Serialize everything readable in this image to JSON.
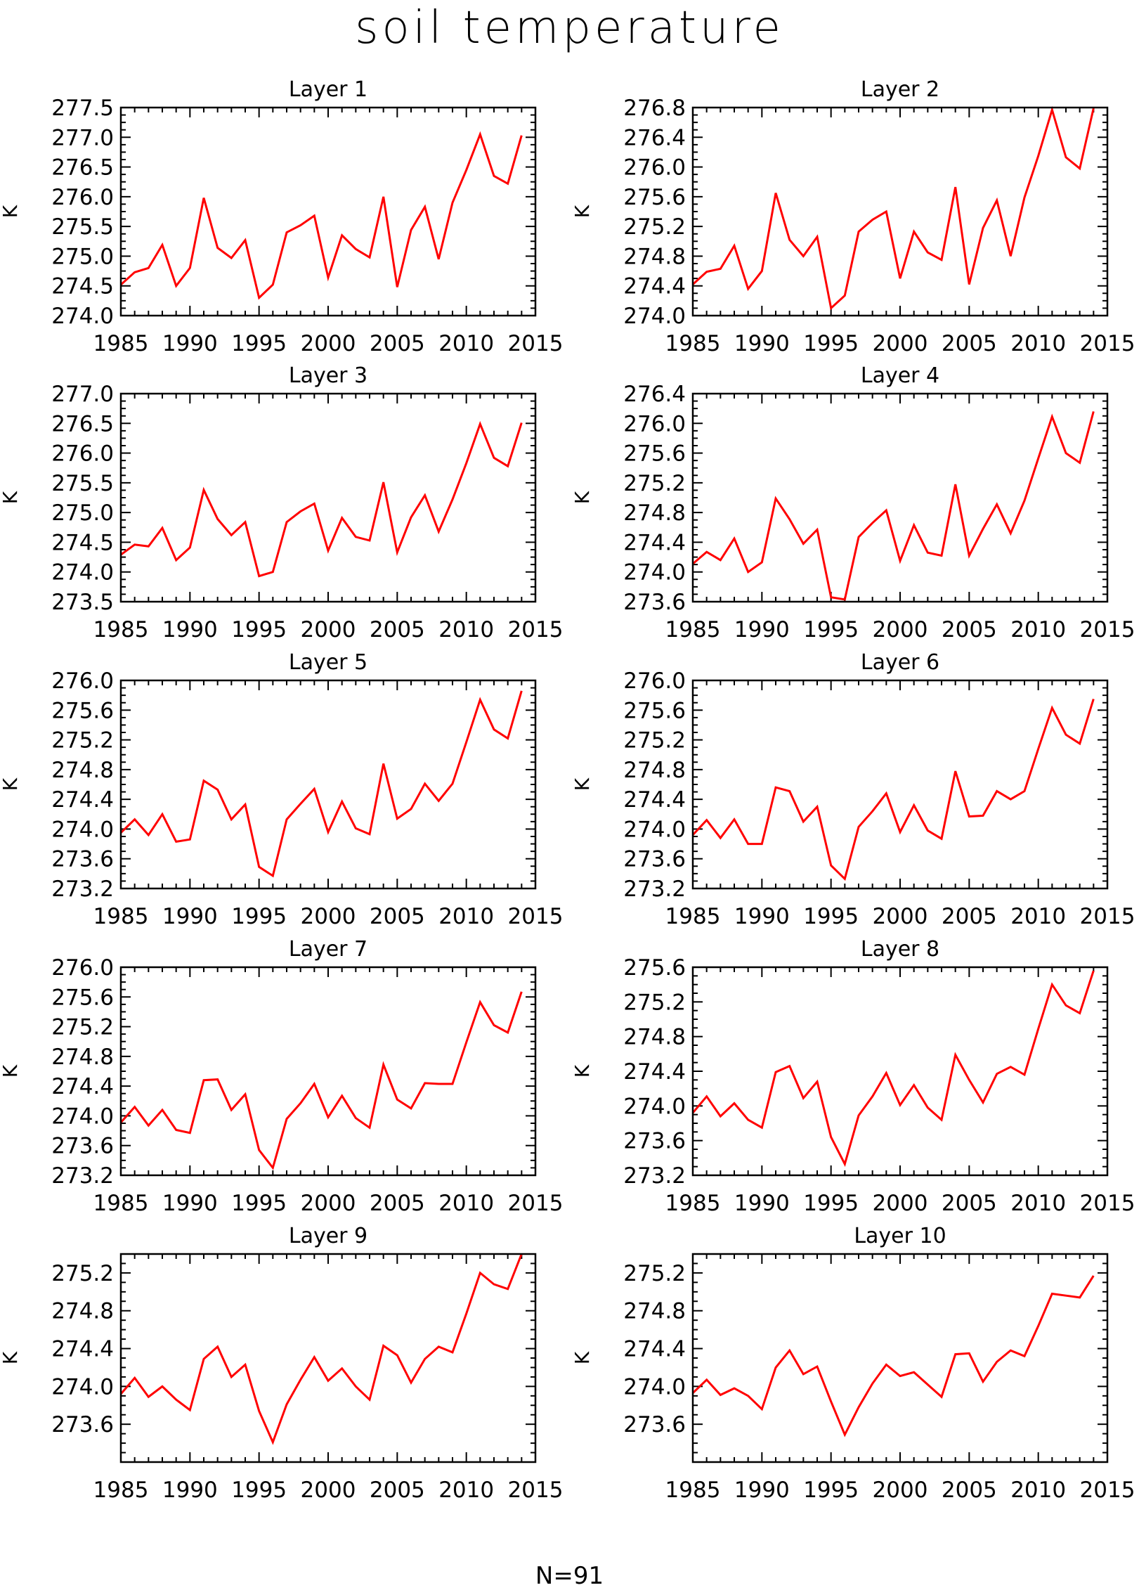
{
  "title": "soil temperature",
  "footer": "N=91",
  "series_color": "#ff0000",
  "chart_data": [
    {
      "type": "line",
      "title": "Layer 1",
      "ylabel": "K",
      "xlim": [
        1985,
        2015
      ],
      "xticks": [
        1985,
        1990,
        1995,
        2000,
        2005,
        2010,
        2015
      ],
      "ylim": [
        274.0,
        277.5
      ],
      "yticks": [
        "274.0",
        "274.5",
        "275.0",
        "275.5",
        "276.0",
        "276.5",
        "277.0",
        "277.5"
      ],
      "x": [
        1985,
        1986,
        1987,
        1988,
        1989,
        1990,
        1991,
        1992,
        1993,
        1994,
        1995,
        1996,
        1997,
        1998,
        1999,
        2000,
        2001,
        2002,
        2003,
        2004,
        2005,
        2006,
        2007,
        2008,
        2009,
        2010,
        2011,
        2012,
        2013,
        2014
      ],
      "y": [
        274.52,
        274.73,
        274.8,
        275.19,
        274.5,
        274.8,
        275.98,
        275.14,
        274.97,
        275.27,
        274.3,
        274.52,
        275.4,
        275.52,
        275.68,
        274.64,
        275.35,
        275.12,
        274.98,
        276.0,
        274.48,
        275.44,
        275.83,
        274.95,
        275.9,
        276.45,
        277.05,
        276.35,
        276.22,
        277.03
      ]
    },
    {
      "type": "line",
      "title": "Layer 2",
      "ylabel": "K",
      "xlim": [
        1985,
        2015
      ],
      "xticks": [
        1985,
        1990,
        1995,
        2000,
        2005,
        2010,
        2015
      ],
      "ylim": [
        274.0,
        276.8
      ],
      "yticks": [
        "274.0",
        "274.4",
        "274.8",
        "275.2",
        "275.6",
        "276.0",
        "276.4",
        "276.8"
      ],
      "x": [
        1985,
        1986,
        1987,
        1988,
        1989,
        1990,
        1991,
        1992,
        1993,
        1994,
        1995,
        1996,
        1997,
        1998,
        1999,
        2000,
        2001,
        2002,
        2003,
        2004,
        2005,
        2006,
        2007,
        2008,
        2009,
        2010,
        2011,
        2012,
        2013,
        2014
      ],
      "y": [
        274.42,
        274.59,
        274.63,
        274.94,
        274.36,
        274.6,
        275.65,
        275.02,
        274.8,
        275.06,
        274.1,
        274.27,
        275.13,
        275.29,
        275.4,
        274.5,
        275.13,
        274.85,
        274.75,
        275.73,
        274.42,
        275.18,
        275.55,
        274.8,
        275.59,
        276.15,
        276.77,
        276.13,
        275.98,
        276.79
      ]
    },
    {
      "type": "line",
      "title": "Layer 3",
      "ylabel": "K",
      "xlim": [
        1985,
        2015
      ],
      "xticks": [
        1985,
        1990,
        1995,
        2000,
        2005,
        2010,
        2015
      ],
      "ylim": [
        273.5,
        277.0
      ],
      "yticks": [
        "273.5",
        "274.0",
        "274.5",
        "275.0",
        "275.5",
        "276.0",
        "276.5",
        "277.0"
      ],
      "x": [
        1985,
        1986,
        1987,
        1988,
        1989,
        1990,
        1991,
        1992,
        1993,
        1994,
        1995,
        1996,
        1997,
        1998,
        1999,
        2000,
        2001,
        2002,
        2003,
        2004,
        2005,
        2006,
        2007,
        2008,
        2009,
        2010,
        2011,
        2012,
        2013,
        2014
      ],
      "y": [
        274.29,
        274.46,
        274.43,
        274.74,
        274.2,
        274.41,
        275.38,
        274.89,
        274.62,
        274.84,
        273.93,
        274.0,
        274.84,
        275.02,
        275.15,
        274.36,
        274.91,
        274.59,
        274.53,
        275.51,
        274.33,
        274.92,
        275.29,
        274.68,
        275.22,
        275.83,
        276.49,
        275.92,
        275.78,
        276.51
      ]
    },
    {
      "type": "line",
      "title": "Layer 4",
      "ylabel": "K",
      "xlim": [
        1985,
        2015
      ],
      "xticks": [
        1985,
        1990,
        1995,
        2000,
        2005,
        2010,
        2015
      ],
      "ylim": [
        273.6,
        276.4
      ],
      "yticks": [
        "273.6",
        "274.0",
        "274.4",
        "274.8",
        "275.2",
        "275.6",
        "276.0",
        "276.4"
      ],
      "x": [
        1985,
        1986,
        1987,
        1988,
        1989,
        1990,
        1991,
        1992,
        1993,
        1994,
        1995,
        1996,
        1997,
        1998,
        1999,
        2000,
        2001,
        2002,
        2003,
        2004,
        2005,
        2006,
        2007,
        2008,
        2009,
        2010,
        2011,
        2012,
        2013,
        2014
      ],
      "y": [
        274.11,
        274.27,
        274.16,
        274.45,
        274.0,
        274.13,
        274.99,
        274.71,
        274.38,
        274.57,
        273.66,
        273.63,
        274.47,
        274.66,
        274.83,
        274.15,
        274.63,
        274.26,
        274.22,
        275.18,
        274.22,
        274.58,
        274.91,
        274.52,
        274.96,
        275.53,
        276.09,
        275.6,
        275.47,
        276.16
      ]
    },
    {
      "type": "line",
      "title": "Layer 5",
      "ylabel": "K",
      "xlim": [
        1985,
        2015
      ],
      "xticks": [
        1985,
        1990,
        1995,
        2000,
        2005,
        2010,
        2015
      ],
      "ylim": [
        273.2,
        276.0
      ],
      "yticks": [
        "273.2",
        "273.6",
        "274.0",
        "274.4",
        "274.8",
        "275.2",
        "275.6",
        "276.0"
      ],
      "x": [
        1985,
        1986,
        1987,
        1988,
        1989,
        1990,
        1991,
        1992,
        1993,
        1994,
        1995,
        1996,
        1997,
        1998,
        1999,
        2000,
        2001,
        2002,
        2003,
        2004,
        2005,
        2006,
        2007,
        2008,
        2009,
        2010,
        2011,
        2012,
        2013,
        2014
      ],
      "y": [
        273.95,
        274.13,
        273.92,
        274.2,
        273.83,
        273.86,
        274.65,
        274.53,
        274.13,
        274.33,
        273.49,
        273.37,
        274.13,
        274.34,
        274.54,
        273.96,
        274.37,
        274.01,
        273.93,
        274.88,
        274.14,
        274.27,
        274.61,
        274.38,
        274.61,
        275.17,
        275.74,
        275.34,
        275.22,
        275.86
      ]
    },
    {
      "type": "line",
      "title": "Layer 6",
      "ylabel": "K",
      "xlim": [
        1985,
        2015
      ],
      "xticks": [
        1985,
        1990,
        1995,
        2000,
        2005,
        2010,
        2015
      ],
      "ylim": [
        273.2,
        276.0
      ],
      "yticks": [
        "273.2",
        "273.6",
        "274.0",
        "274.4",
        "274.8",
        "275.2",
        "275.6",
        "276.0"
      ],
      "x": [
        1985,
        1986,
        1987,
        1988,
        1989,
        1990,
        1991,
        1992,
        1993,
        1994,
        1995,
        1996,
        1997,
        1998,
        1999,
        2000,
        2001,
        2002,
        2003,
        2004,
        2005,
        2006,
        2007,
        2008,
        2009,
        2010,
        2011,
        2012,
        2013,
        2014
      ],
      "y": [
        273.92,
        274.12,
        273.88,
        274.13,
        273.8,
        273.8,
        274.56,
        274.51,
        274.1,
        274.3,
        273.51,
        273.33,
        274.03,
        274.24,
        274.48,
        273.96,
        274.32,
        273.98,
        273.87,
        274.78,
        274.17,
        274.18,
        274.51,
        274.4,
        274.51,
        275.08,
        275.63,
        275.27,
        275.15,
        275.75
      ]
    },
    {
      "type": "line",
      "title": "Layer 7",
      "ylabel": "K",
      "xlim": [
        1985,
        2015
      ],
      "xticks": [
        1985,
        1990,
        1995,
        2000,
        2005,
        2010,
        2015
      ],
      "ylim": [
        273.2,
        276.0
      ],
      "yticks": [
        "273.2",
        "273.6",
        "274.0",
        "274.4",
        "274.8",
        "275.2",
        "275.6",
        "276.0"
      ],
      "x": [
        1985,
        1986,
        1987,
        1988,
        1989,
        1990,
        1991,
        1992,
        1993,
        1994,
        1995,
        1996,
        1997,
        1998,
        1999,
        2000,
        2001,
        2002,
        2003,
        2004,
        2005,
        2006,
        2007,
        2008,
        2009,
        2010,
        2011,
        2012,
        2013,
        2014
      ],
      "y": [
        273.91,
        274.12,
        273.87,
        274.08,
        273.81,
        273.77,
        274.48,
        274.49,
        274.08,
        274.29,
        273.54,
        273.3,
        273.96,
        274.17,
        274.43,
        273.98,
        274.27,
        273.97,
        273.84,
        274.69,
        274.22,
        274.1,
        274.44,
        274.43,
        274.43,
        274.99,
        275.53,
        275.22,
        275.12,
        275.67
      ]
    },
    {
      "type": "line",
      "title": "Layer 8",
      "ylabel": "K",
      "xlim": [
        1985,
        2015
      ],
      "xticks": [
        1985,
        1990,
        1995,
        2000,
        2005,
        2010,
        2015
      ],
      "ylim": [
        273.2,
        275.6
      ],
      "yticks": [
        "273.2",
        "273.6",
        "274.0",
        "274.4",
        "274.8",
        "275.2",
        "275.6"
      ],
      "x": [
        1985,
        1986,
        1987,
        1988,
        1989,
        1990,
        1991,
        1992,
        1993,
        1994,
        1995,
        1996,
        1997,
        1998,
        1999,
        2000,
        2001,
        2002,
        2003,
        2004,
        2005,
        2006,
        2007,
        2008,
        2009,
        2010,
        2011,
        2012,
        2013,
        2014
      ],
      "y": [
        273.92,
        274.11,
        273.88,
        274.03,
        273.84,
        273.75,
        274.39,
        274.46,
        274.09,
        274.28,
        273.64,
        273.33,
        273.89,
        274.11,
        274.38,
        274.01,
        274.24,
        273.98,
        273.84,
        274.59,
        274.3,
        274.04,
        274.37,
        274.45,
        274.36,
        274.89,
        275.4,
        275.16,
        275.07,
        275.56
      ]
    },
    {
      "type": "line",
      "title": "Layer 9",
      "ylabel": "K",
      "xlim": [
        1985,
        2015
      ],
      "xticks": [
        1985,
        1990,
        1995,
        2000,
        2005,
        2010,
        2015
      ],
      "ylim": [
        273.2,
        275.4
      ],
      "yticks": [
        "273.6",
        "274.0",
        "274.4",
        "274.8",
        "275.2"
      ],
      "x": [
        1985,
        1986,
        1987,
        1988,
        1989,
        1990,
        1991,
        1992,
        1993,
        1994,
        1995,
        1996,
        1997,
        1998,
        1999,
        2000,
        2001,
        2002,
        2003,
        2004,
        2005,
        2006,
        2007,
        2008,
        2009,
        2010,
        2011,
        2012,
        2013,
        2014
      ],
      "y": [
        273.92,
        274.09,
        273.89,
        274.0,
        273.86,
        273.75,
        274.29,
        274.42,
        274.1,
        274.23,
        273.74,
        273.41,
        273.81,
        274.07,
        274.31,
        274.06,
        274.19,
        274.0,
        273.86,
        274.43,
        274.33,
        274.04,
        274.29,
        274.42,
        274.36,
        274.77,
        275.2,
        275.08,
        275.03,
        275.4
      ]
    },
    {
      "type": "line",
      "title": "Layer 10",
      "ylabel": "K",
      "xlim": [
        1985,
        2015
      ],
      "xticks": [
        1985,
        1990,
        1995,
        2000,
        2005,
        2010,
        2015
      ],
      "ylim": [
        273.2,
        275.4
      ],
      "yticks": [
        "273.6",
        "274.0",
        "274.4",
        "274.8",
        "275.2"
      ],
      "x": [
        1985,
        1986,
        1987,
        1988,
        1989,
        1990,
        1991,
        1992,
        1993,
        1994,
        1995,
        1996,
        1997,
        1998,
        1999,
        2000,
        2001,
        2002,
        2003,
        2004,
        2005,
        2006,
        2007,
        2008,
        2009,
        2010,
        2011,
        2012,
        2013,
        2014
      ],
      "y": [
        273.93,
        274.07,
        273.91,
        273.98,
        273.9,
        273.76,
        274.2,
        274.38,
        274.13,
        274.21,
        273.84,
        273.49,
        273.78,
        274.03,
        274.23,
        274.11,
        274.15,
        274.02,
        273.89,
        274.34,
        274.35,
        274.05,
        274.26,
        274.38,
        274.32,
        274.64,
        274.98,
        274.96,
        274.94,
        275.17
      ]
    }
  ]
}
